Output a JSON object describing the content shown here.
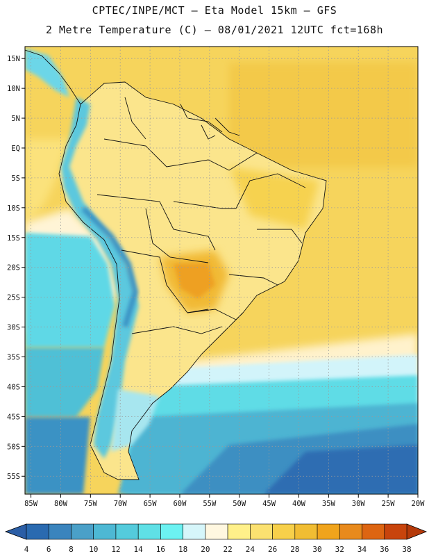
{
  "title": {
    "line1": "CPTEC/INPE/MCT –  Eta Model 15km – GFS",
    "line2": "2 Metre Temperature (C) – 08/01/2021 12UTC fct=168h"
  },
  "map": {
    "lon_range": [
      -86,
      -20
    ],
    "lat_range": [
      -58,
      17
    ],
    "lon_ticks": [
      {
        "v": -85,
        "label": "85W"
      },
      {
        "v": -80,
        "label": "80W"
      },
      {
        "v": -75,
        "label": "75W"
      },
      {
        "v": -70,
        "label": "70W"
      },
      {
        "v": -65,
        "label": "65W"
      },
      {
        "v": -60,
        "label": "60W"
      },
      {
        "v": -55,
        "label": "55W"
      },
      {
        "v": -50,
        "label": "50W"
      },
      {
        "v": -45,
        "label": "45W"
      },
      {
        "v": -40,
        "label": "40W"
      },
      {
        "v": -35,
        "label": "35W"
      },
      {
        "v": -30,
        "label": "30W"
      },
      {
        "v": -25,
        "label": "25W"
      },
      {
        "v": -20,
        "label": "20W"
      }
    ],
    "lat_ticks": [
      {
        "v": 15,
        "label": "15N"
      },
      {
        "v": 10,
        "label": "10N"
      },
      {
        "v": 5,
        "label": "5N"
      },
      {
        "v": 0,
        "label": "EQ"
      },
      {
        "v": -5,
        "label": "5S"
      },
      {
        "v": -10,
        "label": "10S"
      },
      {
        "v": -15,
        "label": "15S"
      },
      {
        "v": -20,
        "label": "20S"
      },
      {
        "v": -25,
        "label": "25S"
      },
      {
        "v": -30,
        "label": "30S"
      },
      {
        "v": -35,
        "label": "35S"
      },
      {
        "v": -40,
        "label": "40S"
      },
      {
        "v": -45,
        "label": "45S"
      },
      {
        "v": -50,
        "label": "50S"
      },
      {
        "v": -55,
        "label": "55S"
      }
    ],
    "grid": true,
    "colors": {
      "ocean_warm": "#f5d35a",
      "land_base": "#fbe38a"
    }
  },
  "colorbar": {
    "levels": [
      "4",
      "6",
      "8",
      "10",
      "12",
      "14",
      "16",
      "18",
      "20",
      "22",
      "24",
      "26",
      "28",
      "30",
      "32",
      "34",
      "36",
      "38"
    ],
    "colors": [
      "#2a6ab0",
      "#3a84bd",
      "#4aa0c8",
      "#4db8d4",
      "#54cbdc",
      "#5fe0e6",
      "#6cf2f2",
      "#d6f6fa",
      "#fff7e0",
      "#fff08a",
      "#fbe170",
      "#f7d04a",
      "#f1bd33",
      "#f0a41c",
      "#e88a1c",
      "#dd6512",
      "#c8440c"
    ],
    "under_color": "#2b5ea6",
    "over_color": "#b53a0a"
  }
}
